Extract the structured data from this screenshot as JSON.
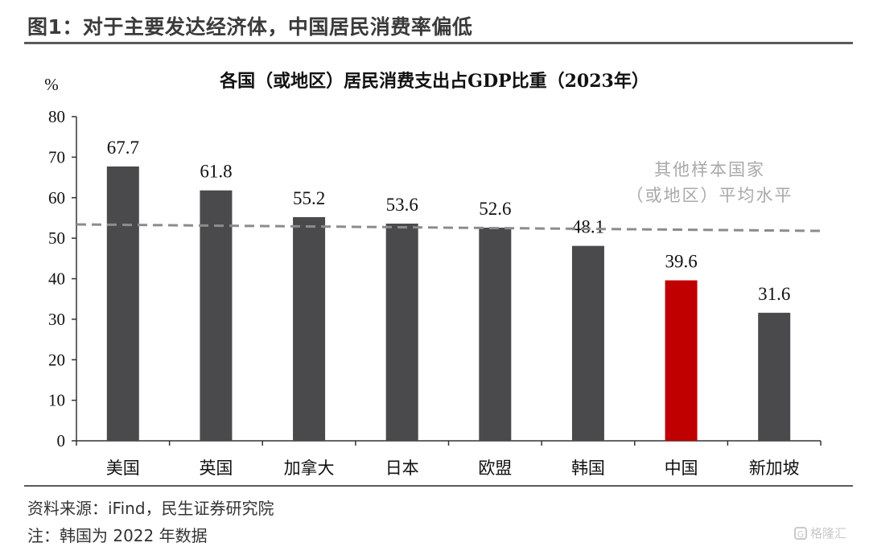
{
  "figure_title": "图1：对于主要发达经济体，中国居民消费率偏低",
  "source": "资料来源：iFind，民生证券研究院",
  "note": "注：韩国为 2022 年数据",
  "watermark": "格隆汇",
  "chart_data": {
    "type": "bar",
    "title": "各国（或地区）居民消费支出占GDP比重（2023年）",
    "ylabel": "%",
    "ylim": [
      0,
      80
    ],
    "yticks": [
      0,
      10,
      20,
      30,
      40,
      50,
      60,
      70,
      80
    ],
    "categories": [
      "美国",
      "英国",
      "加拿大",
      "日本",
      "欧盟",
      "韩国",
      "中国",
      "新加坡"
    ],
    "values": [
      67.7,
      61.8,
      55.2,
      53.6,
      52.6,
      48.1,
      39.6,
      31.6
    ],
    "data_labels": [
      "67.7",
      "61.8",
      "55.2",
      "53.6",
      "52.6",
      "48.1",
      "39.6",
      "31.6"
    ],
    "highlight_category": "中国",
    "colors": {
      "bar": "#4a4a4c",
      "highlight": "#c00000",
      "average_line": "#8c8c8c"
    },
    "average_line": {
      "label_line1": "其他样本国家",
      "label_line2": "（或地区）平均水平",
      "start_value": 53.4,
      "end_value": 51.8,
      "style": "dashed"
    },
    "grid": false,
    "legend": "none"
  }
}
